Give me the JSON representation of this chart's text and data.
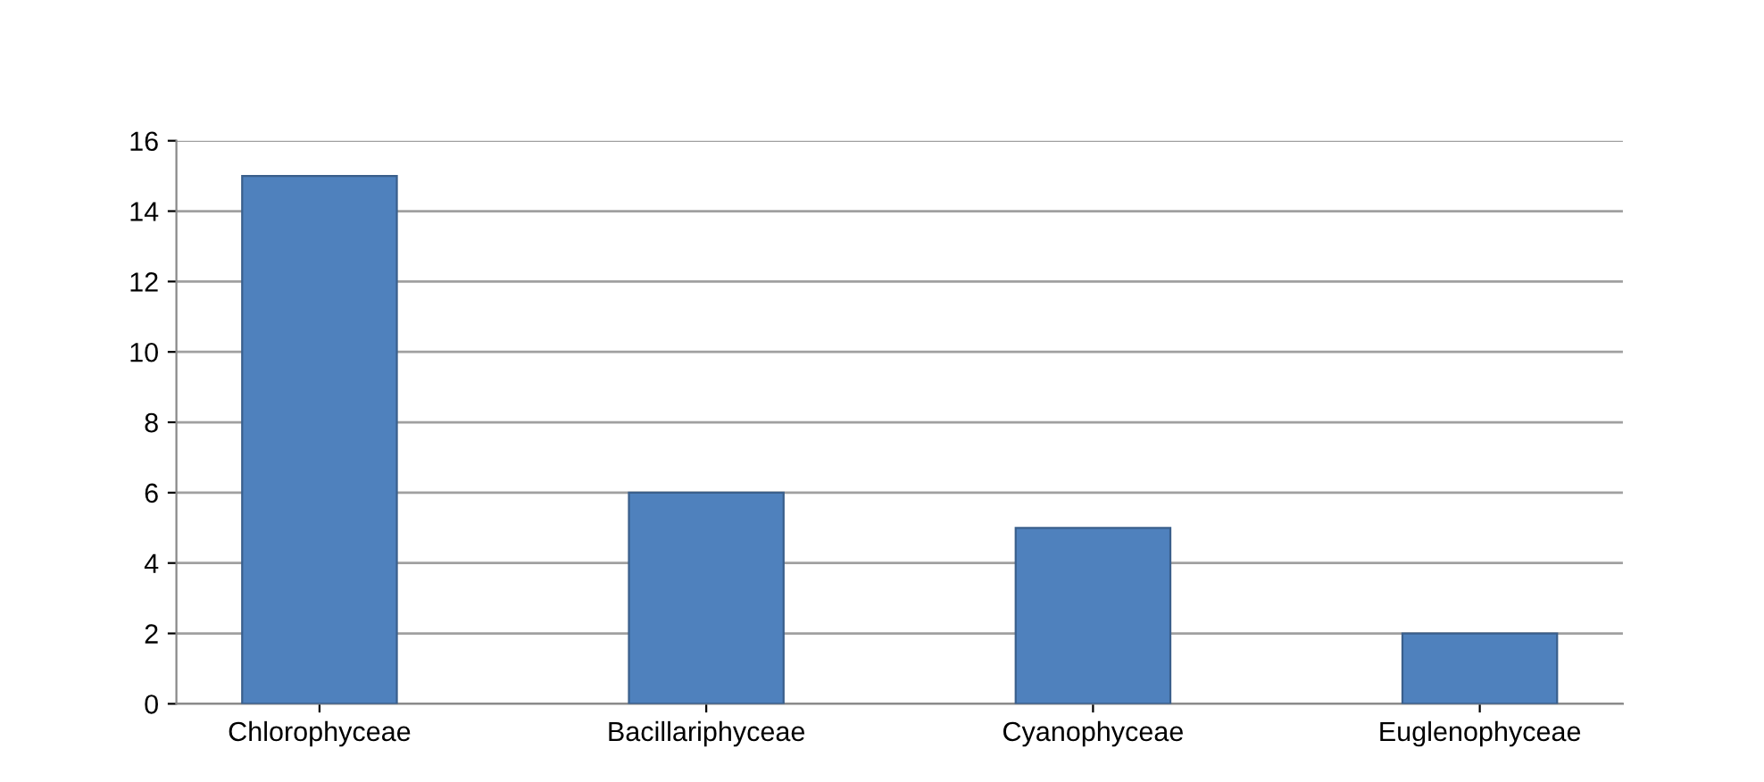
{
  "chart_data": {
    "type": "bar",
    "categories": [
      "Chlorophyceae",
      "Bacillariphyceae",
      "Cyanophyceae",
      "Euglenophyceae"
    ],
    "values": [
      15,
      6,
      5,
      2
    ],
    "color": "#4f81bd",
    "ylim": [
      0,
      16
    ],
    "yticks": [
      0,
      2,
      4,
      6,
      8,
      10,
      12,
      14,
      16
    ],
    "grid": "y"
  }
}
